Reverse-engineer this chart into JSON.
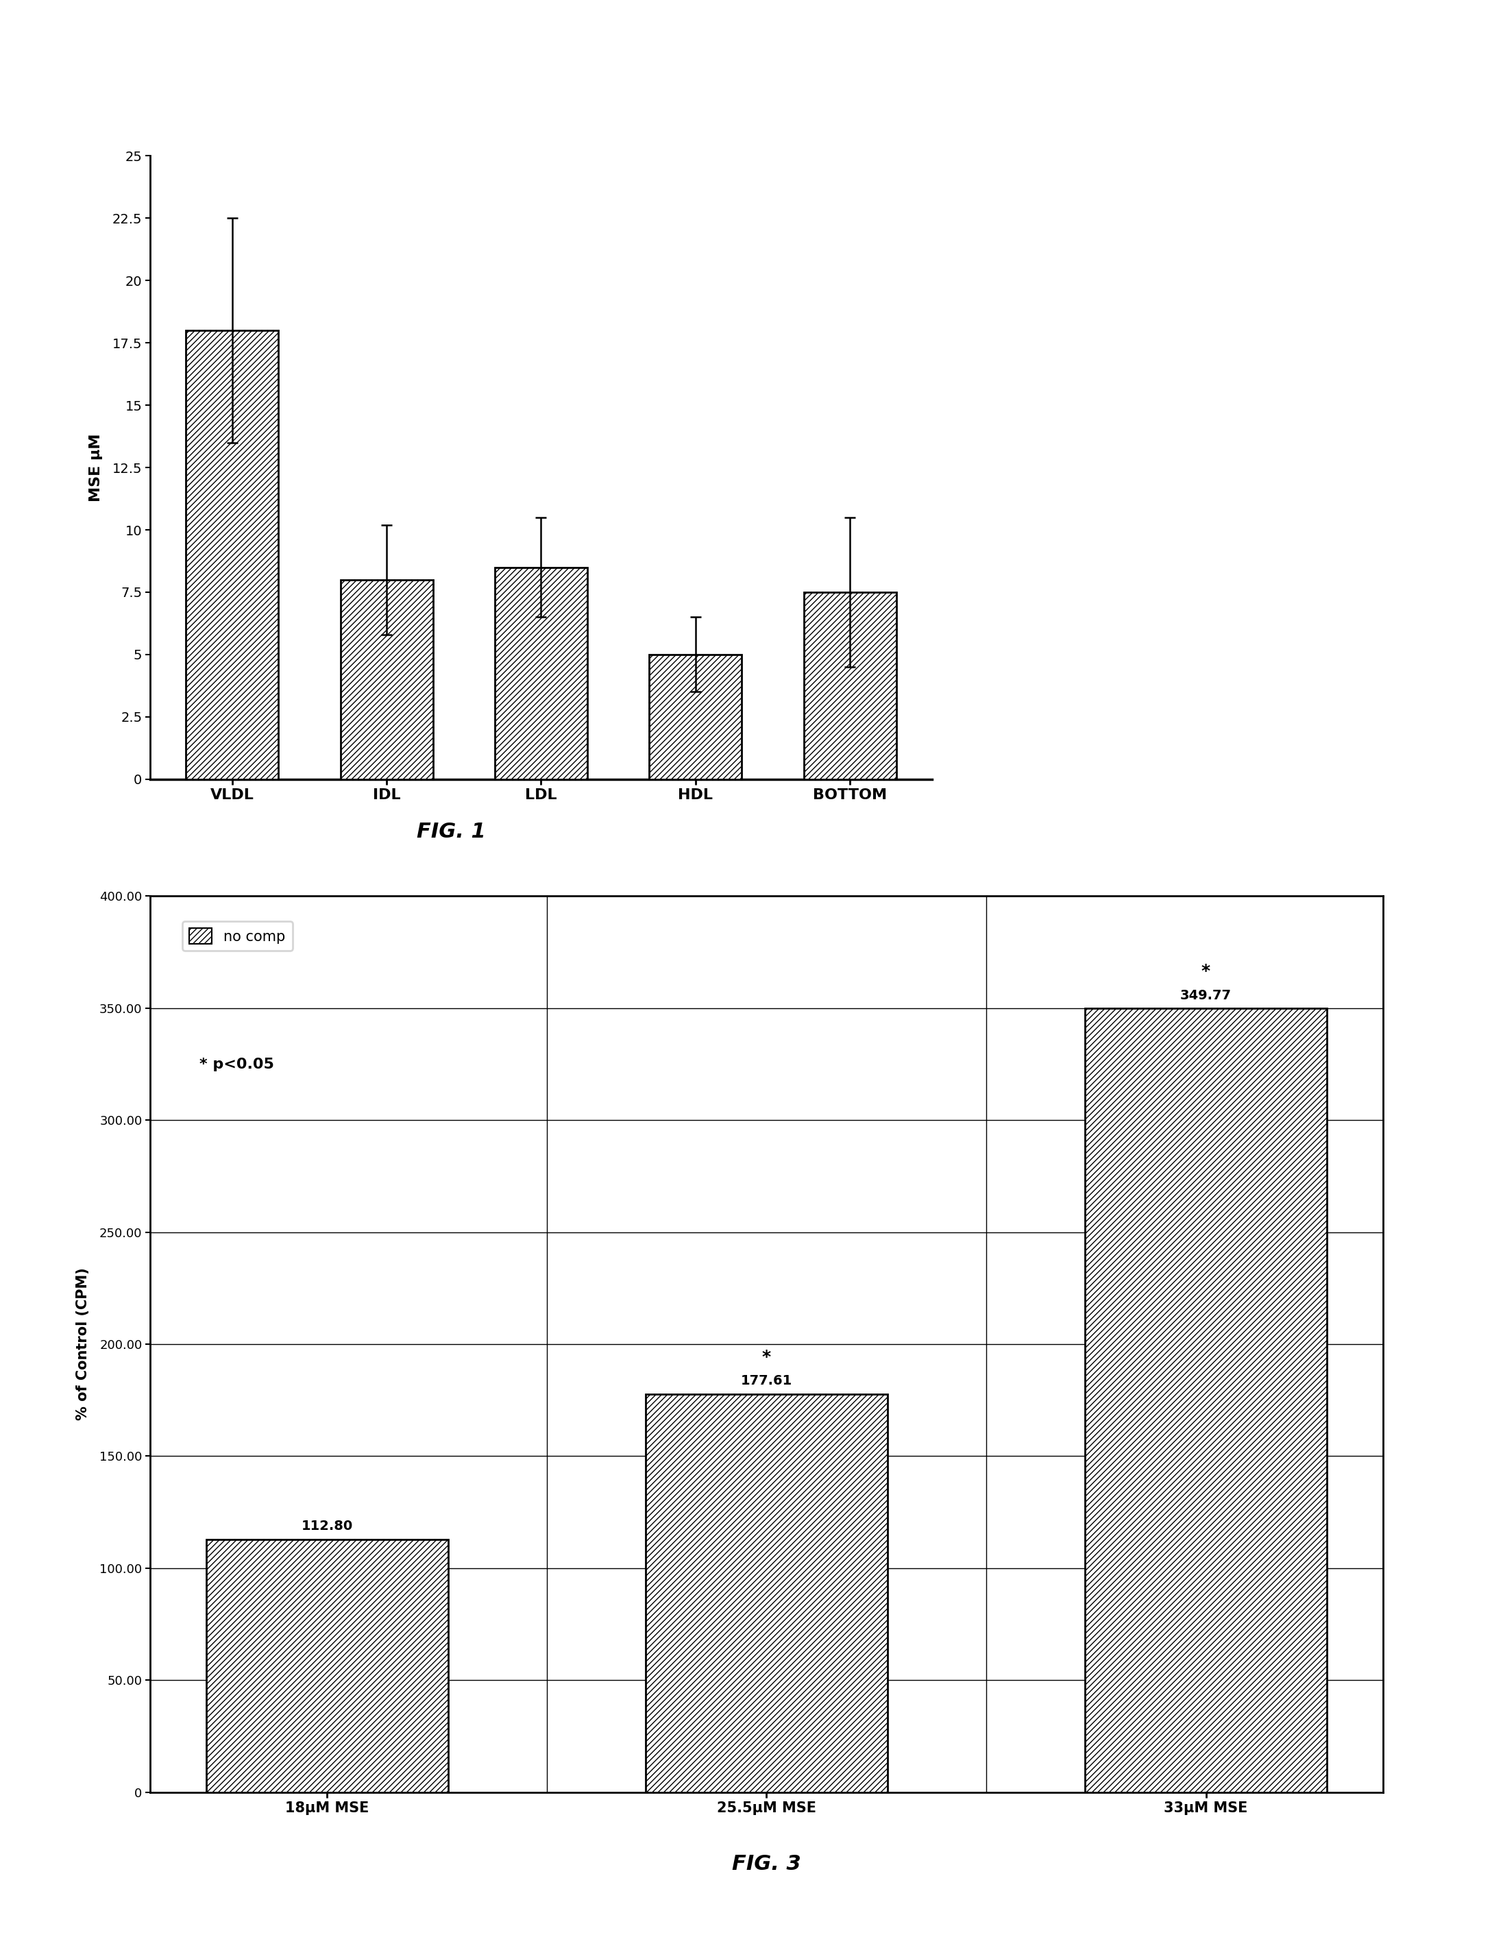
{
  "fig1": {
    "categories": [
      "VLDL",
      "IDL",
      "LDL",
      "HDL",
      "BOTTOM"
    ],
    "values": [
      18.0,
      8.0,
      8.5,
      5.0,
      7.5
    ],
    "errors": [
      4.5,
      2.2,
      2.0,
      1.5,
      3.0
    ],
    "ylabel": "MSE µM",
    "ylim": [
      0,
      25
    ],
    "yticks": [
      0,
      2.5,
      5,
      7.5,
      10,
      12.5,
      15,
      17.5,
      20,
      22.5,
      25
    ],
    "ytick_labels": [
      "0",
      "2.5",
      "5",
      "7.5",
      "10",
      "12.5",
      "15",
      "17.5",
      "20",
      "22.5",
      "25"
    ],
    "caption": "FIG. 1"
  },
  "fig3": {
    "categories": [
      "18μM MSE",
      "25.5μM MSE",
      "33μM MSE"
    ],
    "values": [
      112.8,
      177.61,
      349.77
    ],
    "ylabel": "% of Control (CPM)",
    "ylim": [
      0,
      400
    ],
    "yticks": [
      0,
      50.0,
      100.0,
      150.0,
      200.0,
      250.0,
      300.0,
      350.0,
      400.0
    ],
    "ytick_labels": [
      "0",
      "50.00",
      "100.00",
      "150.00",
      "200.00",
      "250.00",
      "300.00",
      "350.00",
      "400.00"
    ],
    "legend_label": "no comp",
    "significance_label": "* p<0.05",
    "bar_labels": [
      "112.80",
      "177.61",
      "349.77"
    ],
    "significant": [
      false,
      true,
      true
    ],
    "caption": "FIG. 3"
  },
  "hatch_pattern": "////",
  "bar_color": "white",
  "bar_edgecolor": "black",
  "background_color": "white"
}
